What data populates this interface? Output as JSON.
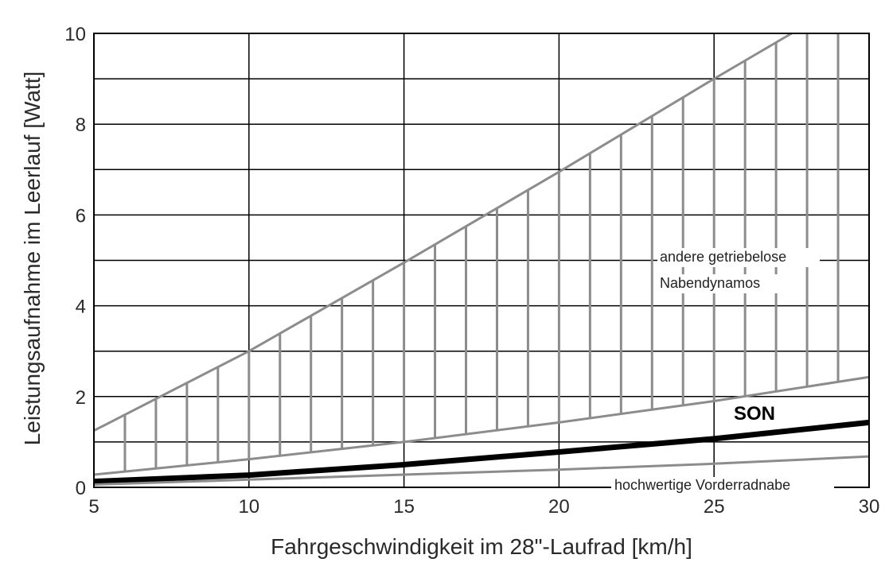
{
  "chart_data": {
    "type": "line",
    "xlabel": "Fahrgeschwindigkeit im 28\"-Laufrad [km/h]",
    "ylabel": "Leistungsaufnahme im Leerlauf [Watt]",
    "xlim": [
      5,
      30
    ],
    "ylim": [
      0,
      10
    ],
    "x_ticks": [
      "5",
      "10",
      "15",
      "20",
      "25",
      "30"
    ],
    "y_ticks": [
      "0",
      "2",
      "4",
      "6",
      "8",
      "10"
    ],
    "grid": true,
    "x_grid_step": 5,
    "y_grid_step": 1,
    "hatched_band": {
      "name": "andere getriebelose Nabendynamos",
      "x": [
        5,
        10,
        15,
        20,
        25,
        30
      ],
      "upper": [
        1.25,
        3.0,
        4.95,
        6.95,
        9.0,
        11.0
      ],
      "lower": [
        0.28,
        0.62,
        1.0,
        1.43,
        1.9,
        2.43
      ],
      "hatch_x_step": 1,
      "color": "#8c8c8c"
    },
    "series": [
      {
        "name": "SON",
        "x": [
          5,
          10,
          15,
          20,
          25,
          30
        ],
        "y": [
          0.13,
          0.27,
          0.5,
          0.78,
          1.07,
          1.43
        ],
        "color": "#000000",
        "style": "bold"
      },
      {
        "name": "hochwertige Vorderradnabe",
        "x": [
          5,
          10,
          15,
          20,
          25,
          30
        ],
        "y": [
          0.06,
          0.17,
          0.28,
          0.39,
          0.52,
          0.68
        ],
        "color": "#8c8c8c",
        "style": "normal"
      }
    ],
    "annotations": [
      {
        "text": "andere getriebelose",
        "name": "annotation-andere-getriebelose"
      },
      {
        "text": "Nabendynamos",
        "name": "annotation-nabendynamos"
      },
      {
        "text": "SON",
        "name": "annotation-son"
      },
      {
        "text": "hochwertige Vorderradnabe",
        "name": "annotation-hochwertige-vorderradnabe"
      }
    ]
  }
}
